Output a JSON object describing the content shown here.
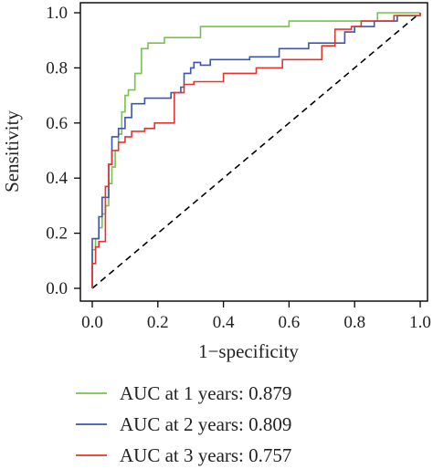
{
  "chart_data": {
    "type": "line",
    "xlabel": "1−specificity",
    "ylabel": "Sensitivity",
    "xlim": [
      0,
      1
    ],
    "ylim": [
      0,
      1
    ],
    "x_ticks": [
      "0.0",
      "0.2",
      "0.4",
      "0.6",
      "0.8",
      "1.0"
    ],
    "y_ticks": [
      "0.0",
      "0.2",
      "0.4",
      "0.6",
      "0.8",
      "1.0"
    ],
    "grid": false,
    "legend_position": "bottom",
    "diagonal_reference": true,
    "series": [
      {
        "name": "AUC at 1 years: 0.879",
        "color": "#77c24c",
        "points": [
          [
            0,
            0
          ],
          [
            0,
            0.14
          ],
          [
            0.01,
            0.14
          ],
          [
            0.01,
            0.18
          ],
          [
            0.02,
            0.18
          ],
          [
            0.02,
            0.22
          ],
          [
            0.03,
            0.22
          ],
          [
            0.03,
            0.27
          ],
          [
            0.04,
            0.27
          ],
          [
            0.04,
            0.3
          ],
          [
            0.05,
            0.3
          ],
          [
            0.05,
            0.38
          ],
          [
            0.06,
            0.38
          ],
          [
            0.06,
            0.44
          ],
          [
            0.07,
            0.44
          ],
          [
            0.07,
            0.5
          ],
          [
            0.08,
            0.5
          ],
          [
            0.08,
            0.56
          ],
          [
            0.09,
            0.56
          ],
          [
            0.09,
            0.64
          ],
          [
            0.1,
            0.64
          ],
          [
            0.1,
            0.7
          ],
          [
            0.11,
            0.7
          ],
          [
            0.11,
            0.72
          ],
          [
            0.13,
            0.72
          ],
          [
            0.13,
            0.78
          ],
          [
            0.15,
            0.78
          ],
          [
            0.15,
            0.87
          ],
          [
            0.17,
            0.87
          ],
          [
            0.17,
            0.89
          ],
          [
            0.22,
            0.89
          ],
          [
            0.22,
            0.91
          ],
          [
            0.33,
            0.91
          ],
          [
            0.33,
            0.95
          ],
          [
            0.6,
            0.95
          ],
          [
            0.6,
            0.97
          ],
          [
            0.87,
            0.97
          ],
          [
            0.87,
            1.0
          ],
          [
            1.0,
            1.0
          ]
        ]
      },
      {
        "name": "AUC at 2 years: 0.809",
        "color": "#3a56b0",
        "points": [
          [
            0,
            0
          ],
          [
            0,
            0.18
          ],
          [
            0.02,
            0.18
          ],
          [
            0.02,
            0.26
          ],
          [
            0.03,
            0.26
          ],
          [
            0.03,
            0.33
          ],
          [
            0.05,
            0.33
          ],
          [
            0.05,
            0.45
          ],
          [
            0.06,
            0.45
          ],
          [
            0.06,
            0.55
          ],
          [
            0.08,
            0.55
          ],
          [
            0.08,
            0.58
          ],
          [
            0.1,
            0.58
          ],
          [
            0.1,
            0.62
          ],
          [
            0.12,
            0.62
          ],
          [
            0.12,
            0.67
          ],
          [
            0.16,
            0.67
          ],
          [
            0.16,
            0.69
          ],
          [
            0.24,
            0.69
          ],
          [
            0.24,
            0.71
          ],
          [
            0.27,
            0.71
          ],
          [
            0.27,
            0.73
          ],
          [
            0.28,
            0.73
          ],
          [
            0.28,
            0.78
          ],
          [
            0.3,
            0.78
          ],
          [
            0.3,
            0.8
          ],
          [
            0.31,
            0.8
          ],
          [
            0.31,
            0.82
          ],
          [
            0.33,
            0.82
          ],
          [
            0.33,
            0.81
          ],
          [
            0.36,
            0.81
          ],
          [
            0.36,
            0.83
          ],
          [
            0.48,
            0.83
          ],
          [
            0.48,
            0.84
          ],
          [
            0.57,
            0.84
          ],
          [
            0.57,
            0.87
          ],
          [
            0.66,
            0.87
          ],
          [
            0.66,
            0.89
          ],
          [
            0.77,
            0.89
          ],
          [
            0.77,
            0.93
          ],
          [
            0.8,
            0.93
          ],
          [
            0.8,
            0.95
          ],
          [
            0.86,
            0.95
          ],
          [
            0.86,
            0.97
          ],
          [
            0.93,
            0.97
          ],
          [
            0.93,
            0.99
          ],
          [
            1.0,
            0.99
          ],
          [
            1.0,
            1.0
          ]
        ]
      },
      {
        "name": "AUC at 3 years: 0.757",
        "color": "#e3342f",
        "points": [
          [
            0,
            0
          ],
          [
            0,
            0.09
          ],
          [
            0.01,
            0.09
          ],
          [
            0.01,
            0.15
          ],
          [
            0.02,
            0.15
          ],
          [
            0.02,
            0.17
          ],
          [
            0.04,
            0.17
          ],
          [
            0.04,
            0.37
          ],
          [
            0.05,
            0.37
          ],
          [
            0.05,
            0.45
          ],
          [
            0.06,
            0.45
          ],
          [
            0.06,
            0.5
          ],
          [
            0.08,
            0.5
          ],
          [
            0.08,
            0.53
          ],
          [
            0.1,
            0.53
          ],
          [
            0.1,
            0.55
          ],
          [
            0.12,
            0.55
          ],
          [
            0.12,
            0.57
          ],
          [
            0.16,
            0.57
          ],
          [
            0.16,
            0.58
          ],
          [
            0.19,
            0.58
          ],
          [
            0.19,
            0.6
          ],
          [
            0.25,
            0.6
          ],
          [
            0.25,
            0.71
          ],
          [
            0.28,
            0.71
          ],
          [
            0.28,
            0.74
          ],
          [
            0.31,
            0.74
          ],
          [
            0.31,
            0.75
          ],
          [
            0.4,
            0.75
          ],
          [
            0.4,
            0.78
          ],
          [
            0.5,
            0.78
          ],
          [
            0.5,
            0.8
          ],
          [
            0.58,
            0.8
          ],
          [
            0.58,
            0.83
          ],
          [
            0.7,
            0.83
          ],
          [
            0.7,
            0.88
          ],
          [
            0.74,
            0.88
          ],
          [
            0.74,
            0.94
          ],
          [
            0.79,
            0.94
          ],
          [
            0.79,
            0.95
          ],
          [
            0.82,
            0.95
          ],
          [
            0.82,
            0.97
          ],
          [
            0.92,
            0.97
          ],
          [
            0.92,
            0.99
          ],
          [
            1.0,
            0.99
          ],
          [
            1.0,
            1.0
          ]
        ]
      }
    ]
  }
}
